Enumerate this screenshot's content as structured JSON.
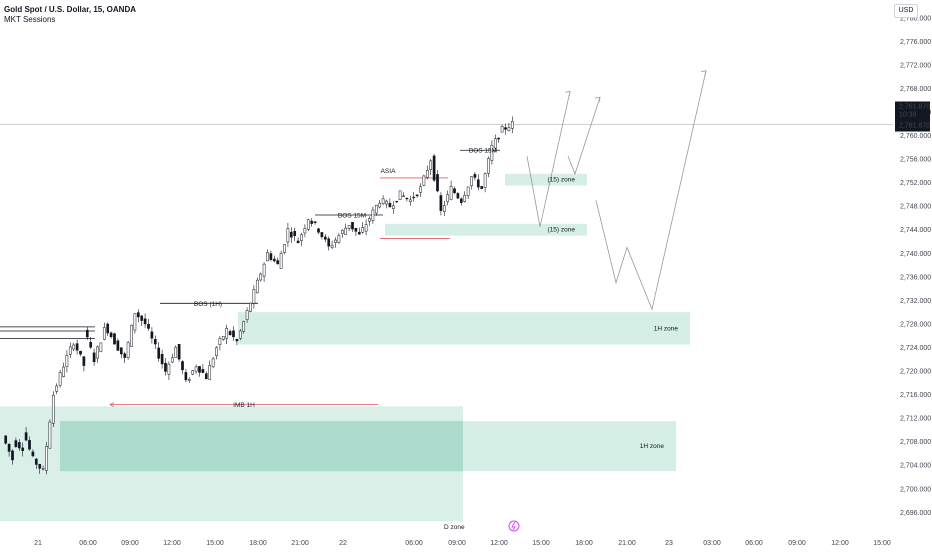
{
  "header": {
    "symbol_line": "Gold Spot / U.S. Dollar, 15, OANDA",
    "indicator": "MKT Sessions"
  },
  "currency": "USD",
  "price_tag": {
    "price": "2,761.870",
    "countdown": "10:39",
    "price2": "2,761.870"
  },
  "colors": {
    "bull": "#131722",
    "bear": "#131722",
    "zone": "#b9e2d6",
    "zone_dark": "#9bd3c3",
    "red_line": "#e05c6a",
    "grid_axis": "#d1d4dc",
    "price_line": "#b2b5be",
    "arrow": "#9598a1",
    "watermark": "#e040fb"
  },
  "chart_data": {
    "type": "candlestick",
    "y_axis": {
      "ylim": [
        2693,
        2782
      ],
      "ticks": [
        "2,780.000",
        "2,776.000",
        "2,772.000",
        "2,768.000",
        "2,764.000",
        "2,760.000",
        "2,756.000",
        "2,752.000",
        "2,748.000",
        "2,744.000",
        "2,740.000",
        "2,736.000",
        "2,732.000",
        "2,728.000",
        "2,724.000",
        "2,720.000",
        "2,716.000",
        "2,712.000",
        "2,708.000",
        "2,704.000",
        "2,700.000",
        "2,696.000"
      ]
    },
    "x_axis": {
      "tick_labels": [
        "21",
        "06:00",
        "09:00",
        "12:00",
        "15:00",
        "18:00",
        "21:00",
        "22",
        "06:00",
        "09:00",
        "12:00",
        "15:00",
        "18:00",
        "21:00",
        "23",
        "03:00",
        "06:00",
        "09:00",
        "12:00",
        "15:00"
      ]
    },
    "price_path": [
      [
        2709,
        2705
      ],
      [
        2708,
        2707
      ],
      [
        2710,
        2705
      ],
      [
        2705,
        2703
      ],
      [
        2703,
        2716
      ],
      [
        2716,
        2721
      ],
      [
        2721,
        2725
      ],
      [
        2725,
        2721
      ],
      [
        2727,
        2722
      ],
      [
        2722,
        2727
      ],
      [
        2728,
        2725
      ],
      [
        2725,
        2722
      ],
      [
        2722,
        2730
      ],
      [
        2730,
        2728
      ],
      [
        2728,
        2724
      ],
      [
        2724,
        2720
      ],
      [
        2720,
        2724
      ],
      [
        2724,
        2718
      ],
      [
        2718,
        2721
      ],
      [
        2721,
        2719
      ],
      [
        2719,
        2724
      ],
      [
        2724,
        2727
      ],
      [
        2727,
        2725
      ],
      [
        2725,
        2730
      ],
      [
        2730,
        2735
      ],
      [
        2735,
        2740
      ],
      [
        2740,
        2738
      ],
      [
        2738,
        2744
      ],
      [
        2744,
        2742
      ],
      [
        2742,
        2746
      ],
      [
        2746,
        2744
      ],
      [
        2744,
        2741
      ],
      [
        2741,
        2743
      ],
      [
        2743,
        2745
      ],
      [
        2745,
        2743
      ],
      [
        2743,
        2746
      ],
      [
        2746,
        2749
      ],
      [
        2749,
        2748
      ],
      [
        2748,
        2750
      ],
      [
        2750,
        2749
      ],
      [
        2749,
        2751
      ],
      [
        2751,
        2756
      ],
      [
        2756,
        2747
      ],
      [
        2747,
        2751
      ],
      [
        2751,
        2749
      ],
      [
        2749,
        2753
      ],
      [
        2753,
        2751
      ],
      [
        2751,
        2758
      ],
      [
        2758,
        2761
      ],
      [
        2761,
        2762
      ]
    ],
    "zones": [
      {
        "label": "(15) zone",
        "y_top": 2753.5,
        "y_bottom": 2751.5
      },
      {
        "label": "(15) zone",
        "y_top": 2745,
        "y_bottom": 2743
      },
      {
        "label": "1H zone",
        "y_top": 2730,
        "y_bottom": 2724.5
      },
      {
        "label": "1H zone",
        "y_top": 2711.5,
        "y_bottom": 2703
      },
      {
        "label": "D zone",
        "y_top": 2714,
        "y_bottom": 2694.5
      }
    ],
    "structure": [
      {
        "label": "BOS 15M",
        "y": 2757.5
      },
      {
        "label": "BOS 15M",
        "y": 2746.5
      },
      {
        "label": "BOS (1H)",
        "y": 2731.5
      },
      {
        "label": "IMB 1H",
        "y": 2714.3
      },
      {
        "label": "ASIA",
        "y": 2752.8
      }
    ],
    "projection": [
      [
        2749,
        2756
      ],
      [
        2745,
        2744
      ],
      [
        2756,
        2753
      ],
      [
        2767,
        2761
      ],
      [
        2748,
        2737
      ],
      [
        2739,
        2730
      ],
      [
        2731,
        2771
      ]
    ]
  }
}
